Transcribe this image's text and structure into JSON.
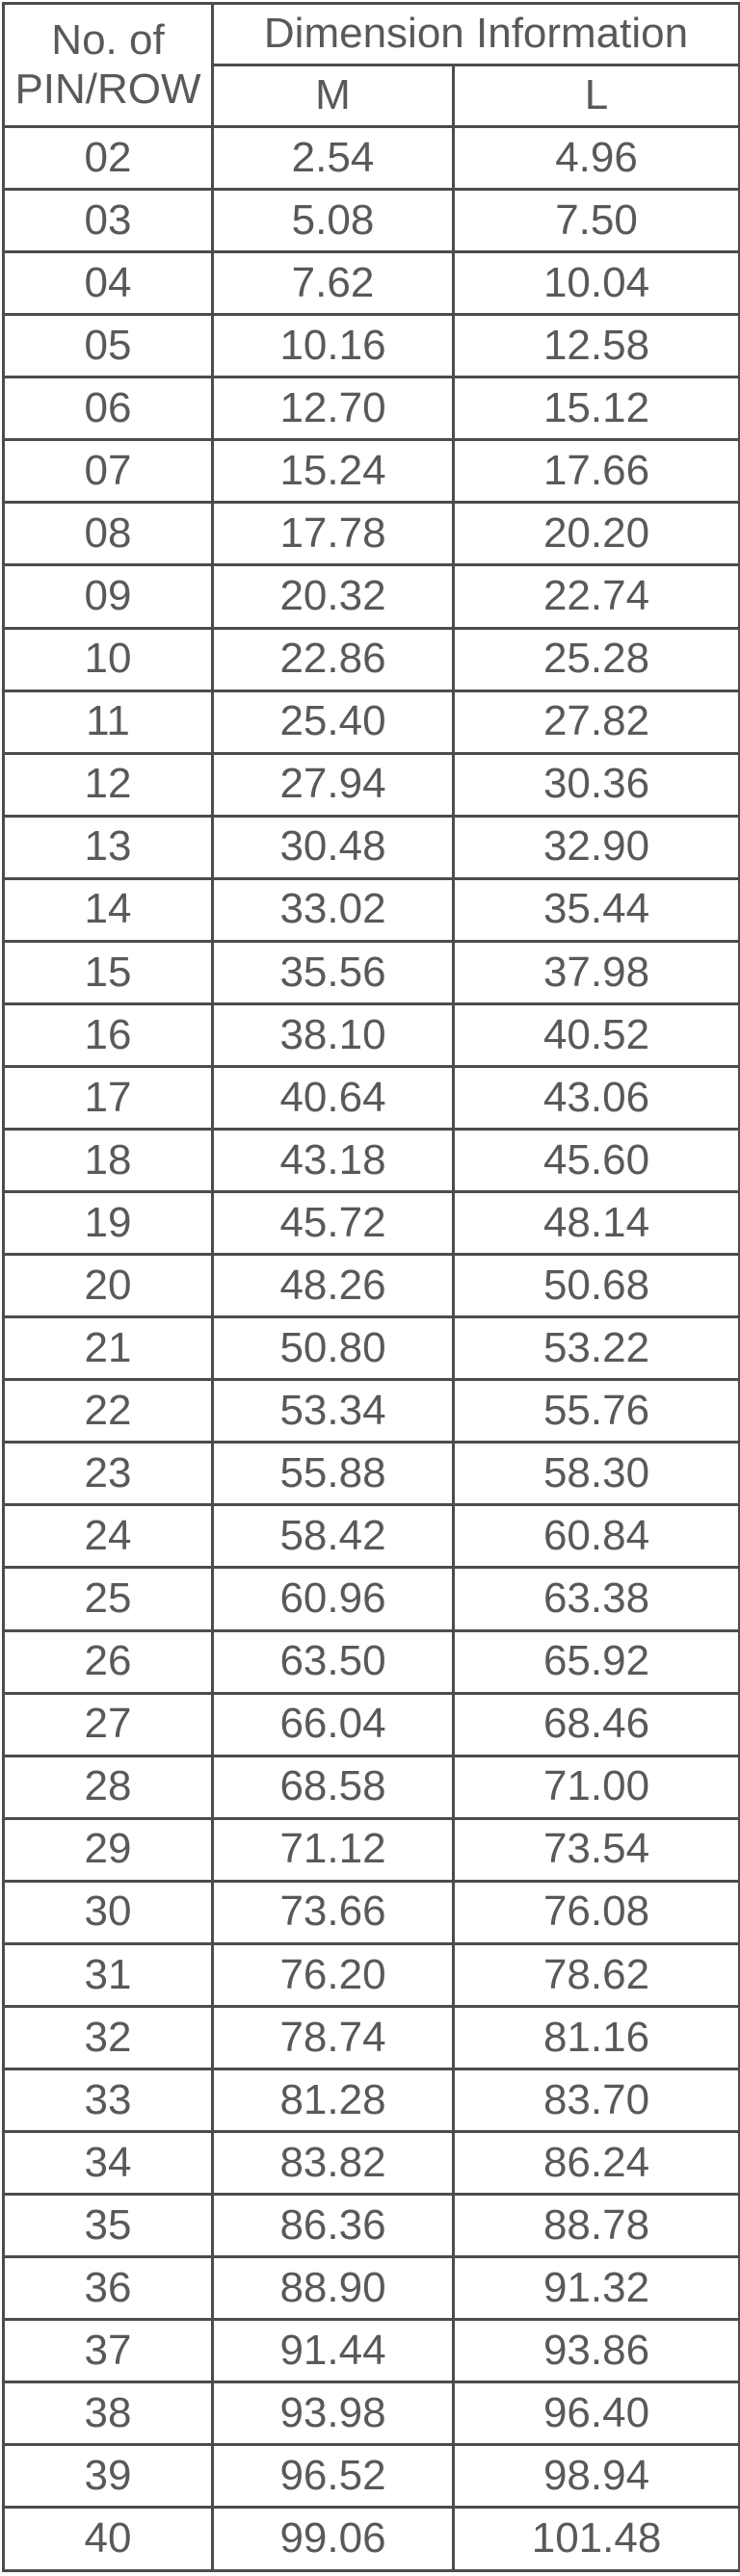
{
  "table": {
    "header": {
      "row_label_line1": "No. of",
      "row_label_line2": "PIN/ROW",
      "group_label": "Dimension Information",
      "col_m": "M",
      "col_l": "L"
    },
    "rows": [
      [
        "02",
        "2.54",
        "4.96"
      ],
      [
        "03",
        "5.08",
        "7.50"
      ],
      [
        "04",
        "7.62",
        "10.04"
      ],
      [
        "05",
        "10.16",
        "12.58"
      ],
      [
        "06",
        "12.70",
        "15.12"
      ],
      [
        "07",
        "15.24",
        "17.66"
      ],
      [
        "08",
        "17.78",
        "20.20"
      ],
      [
        "09",
        "20.32",
        "22.74"
      ],
      [
        "10",
        "22.86",
        "25.28"
      ],
      [
        "11",
        "25.40",
        "27.82"
      ],
      [
        "12",
        "27.94",
        "30.36"
      ],
      [
        "13",
        "30.48",
        "32.90"
      ],
      [
        "14",
        "33.02",
        "35.44"
      ],
      [
        "15",
        "35.56",
        "37.98"
      ],
      [
        "16",
        "38.10",
        "40.52"
      ],
      [
        "17",
        "40.64",
        "43.06"
      ],
      [
        "18",
        "43.18",
        "45.60"
      ],
      [
        "19",
        "45.72",
        "48.14"
      ],
      [
        "20",
        "48.26",
        "50.68"
      ],
      [
        "21",
        "50.80",
        "53.22"
      ],
      [
        "22",
        "53.34",
        "55.76"
      ],
      [
        "23",
        "55.88",
        "58.30"
      ],
      [
        "24",
        "58.42",
        "60.84"
      ],
      [
        "25",
        "60.96",
        "63.38"
      ],
      [
        "26",
        "63.50",
        "65.92"
      ],
      [
        "27",
        "66.04",
        "68.46"
      ],
      [
        "28",
        "68.58",
        "71.00"
      ],
      [
        "29",
        "71.12",
        "73.54"
      ],
      [
        "30",
        "73.66",
        "76.08"
      ],
      [
        "31",
        "76.20",
        "78.62"
      ],
      [
        "32",
        "78.74",
        "81.16"
      ],
      [
        "33",
        "81.28",
        "83.70"
      ],
      [
        "34",
        "83.82",
        "86.24"
      ],
      [
        "35",
        "86.36",
        "88.78"
      ],
      [
        "36",
        "88.90",
        "91.32"
      ],
      [
        "37",
        "91.44",
        "93.86"
      ],
      [
        "38",
        "93.98",
        "96.40"
      ],
      [
        "39",
        "96.52",
        "98.94"
      ],
      [
        "40",
        "99.06",
        "101.48"
      ]
    ]
  },
  "colors": {
    "border": "#4c4c4e",
    "text": "#58595b",
    "background": "#ffffff"
  }
}
